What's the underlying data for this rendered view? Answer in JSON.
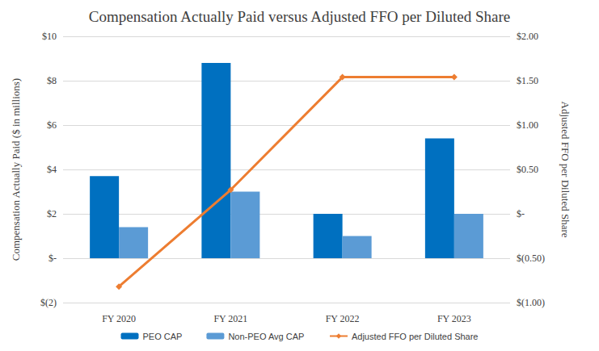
{
  "chart_data": {
    "type": "bar",
    "title": "Compensation Actually Paid versus Adjusted FFO per Diluted Share",
    "categories": [
      "FY 2020",
      "FY 2021",
      "FY 2022",
      "FY 2023"
    ],
    "y_label": "Compensation Actually Paid ($ in millions)",
    "y2_label": "Adjusted FFO per Diluted Share",
    "series": [
      {
        "name": "PEO CAP",
        "type": "bar",
        "color": "#0070c0",
        "values": [
          3.7,
          8.8,
          2.0,
          5.4
        ]
      },
      {
        "name": "Non-PEO Avg CAP",
        "type": "bar",
        "color": "#5b9bd5",
        "values": [
          1.4,
          3.0,
          1.0,
          2.0
        ]
      },
      {
        "name": "Adjusted FFO per Diluted Share",
        "type": "line",
        "axis": "y2",
        "color": "#ed7d31",
        "marker": "diamond",
        "values": [
          -0.82,
          0.27,
          1.54,
          1.54
        ]
      }
    ],
    "ylim": [
      -2,
      10
    ],
    "yticks": [
      {
        "value": -2,
        "label": "$(2)"
      },
      {
        "value": 0,
        "label": "$-"
      },
      {
        "value": 2,
        "label": "$2"
      },
      {
        "value": 4,
        "label": "$4"
      },
      {
        "value": 6,
        "label": "$6"
      },
      {
        "value": 8,
        "label": "$8"
      },
      {
        "value": 10,
        "label": "$10"
      }
    ],
    "y2lim": [
      -1,
      2
    ],
    "y2ticks": [
      {
        "value": -1,
        "label": "$(1.00)"
      },
      {
        "value": -0.5,
        "label": "$(0.50)"
      },
      {
        "value": 0,
        "label": "$-"
      },
      {
        "value": 0.5,
        "label": "$0.50"
      },
      {
        "value": 1,
        "label": "$1.00"
      },
      {
        "value": 1.5,
        "label": "$1.50"
      },
      {
        "value": 2,
        "label": "$2.00"
      }
    ],
    "grid": true,
    "legend": "bottom"
  }
}
